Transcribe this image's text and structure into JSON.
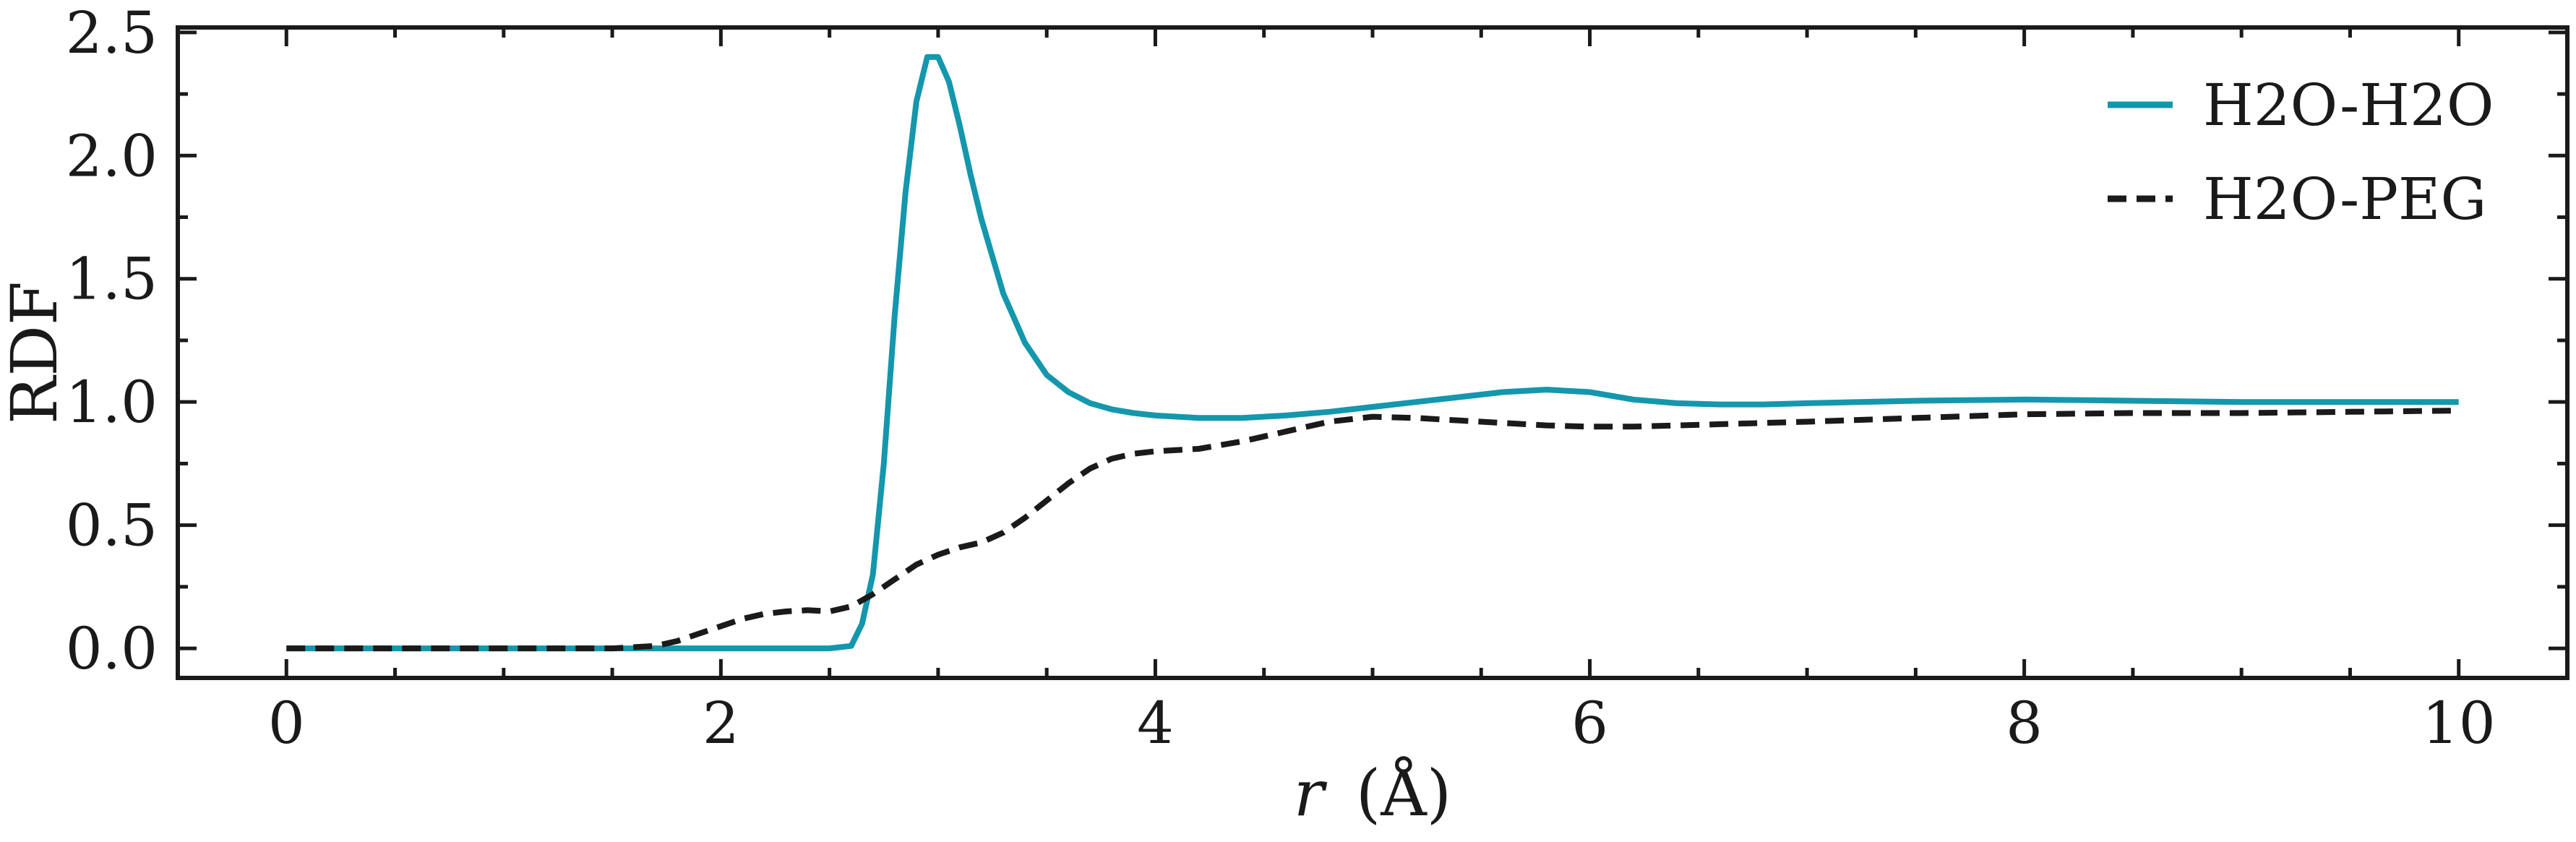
{
  "chart_data": {
    "type": "line",
    "title": "",
    "xlabel_var": "r",
    "xlabel_unit": "(Å)",
    "ylabel": "RDF",
    "xlim": [
      -0.5,
      10.5
    ],
    "ylim": [
      -0.12,
      2.52
    ],
    "xticks": [
      0,
      2,
      4,
      6,
      8,
      10
    ],
    "xtick_labels": [
      "0",
      "2",
      "4",
      "6",
      "8",
      "10"
    ],
    "yticks": [
      0.0,
      0.5,
      1.0,
      1.5,
      2.0,
      2.5
    ],
    "ytick_labels": [
      "0.0",
      "0.5",
      "1.0",
      "1.5",
      "2.0",
      "2.5"
    ],
    "grid": false,
    "legend_position": "top-right",
    "series": [
      {
        "name": "H2O-H2O",
        "color": "#1497ad",
        "style": "solid",
        "x": [
          0,
          0.5,
          1.0,
          1.5,
          2.0,
          2.5,
          2.6,
          2.65,
          2.7,
          2.75,
          2.8,
          2.85,
          2.9,
          2.95,
          3.0,
          3.05,
          3.1,
          3.15,
          3.2,
          3.3,
          3.4,
          3.5,
          3.6,
          3.7,
          3.8,
          3.9,
          4.0,
          4.2,
          4.4,
          4.6,
          4.8,
          5.0,
          5.2,
          5.4,
          5.6,
          5.8,
          6.0,
          6.2,
          6.4,
          6.6,
          6.8,
          7.0,
          7.5,
          8.0,
          8.5,
          9.0,
          9.5,
          10.0
        ],
        "y": [
          0,
          0,
          0,
          0,
          0,
          0,
          0.01,
          0.1,
          0.3,
          0.75,
          1.35,
          1.85,
          2.22,
          2.4,
          2.4,
          2.3,
          2.12,
          1.92,
          1.74,
          1.44,
          1.24,
          1.11,
          1.04,
          0.995,
          0.97,
          0.955,
          0.945,
          0.935,
          0.935,
          0.945,
          0.96,
          0.98,
          1.0,
          1.02,
          1.04,
          1.05,
          1.04,
          1.01,
          0.995,
          0.99,
          0.99,
          0.995,
          1.005,
          1.01,
          1.005,
          1.0,
          1.0,
          1.0
        ]
      },
      {
        "name": "H2O-PEG",
        "color": "#1a1a1a",
        "style": "dashed",
        "x": [
          0,
          0.5,
          1.0,
          1.5,
          1.7,
          1.8,
          1.9,
          2.0,
          2.1,
          2.2,
          2.3,
          2.4,
          2.5,
          2.6,
          2.7,
          2.8,
          2.9,
          3.0,
          3.1,
          3.2,
          3.3,
          3.4,
          3.5,
          3.6,
          3.7,
          3.8,
          3.9,
          4.0,
          4.2,
          4.4,
          4.6,
          4.8,
          5.0,
          5.2,
          5.4,
          5.6,
          5.8,
          6.0,
          6.2,
          6.4,
          6.6,
          6.8,
          7.0,
          7.5,
          8.0,
          8.5,
          9.0,
          9.5,
          10.0
        ],
        "y": [
          0,
          0,
          0,
          0,
          0.01,
          0.03,
          0.06,
          0.09,
          0.12,
          0.14,
          0.15,
          0.155,
          0.15,
          0.17,
          0.22,
          0.28,
          0.34,
          0.38,
          0.41,
          0.43,
          0.47,
          0.53,
          0.6,
          0.67,
          0.73,
          0.77,
          0.79,
          0.8,
          0.81,
          0.84,
          0.88,
          0.92,
          0.94,
          0.935,
          0.925,
          0.915,
          0.905,
          0.9,
          0.9,
          0.905,
          0.91,
          0.915,
          0.92,
          0.935,
          0.95,
          0.955,
          0.955,
          0.96,
          0.965
        ]
      }
    ]
  }
}
